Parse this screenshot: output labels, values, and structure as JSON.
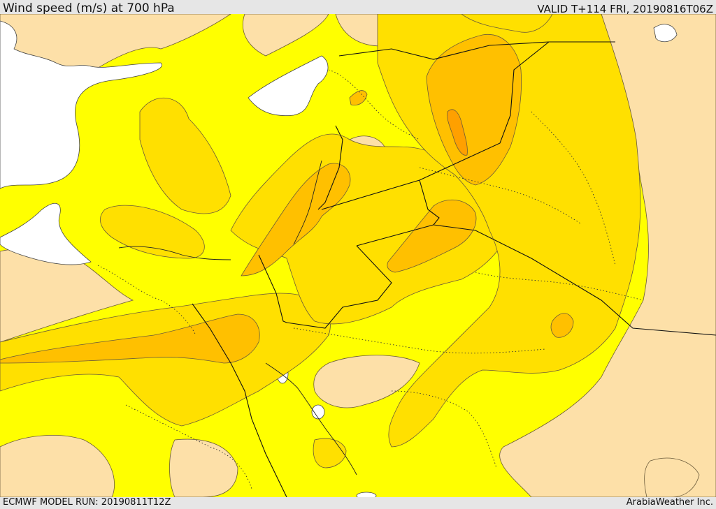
{
  "header": {
    "title": "Wind speed (m/s) at 700 hPa",
    "valid_time": "VALID T+114 FRI, 20190816T06Z"
  },
  "footer": {
    "model_run": "ECMWF MODEL RUN: 20190811T12Z",
    "provider": "ArabiaWeather Inc."
  },
  "map": {
    "variable": "wind-speed",
    "level_hpa": 700,
    "colors": {
      "water": "#ffffff",
      "band_low": "#fde0a8",
      "band_1": "#ffff00",
      "band_2": "#ffe000",
      "band_3": "#ffc000",
      "band_4": "#ffa000",
      "band_5": "#ff8a00",
      "contour": "#5a4a2a",
      "border": "#111111"
    }
  }
}
